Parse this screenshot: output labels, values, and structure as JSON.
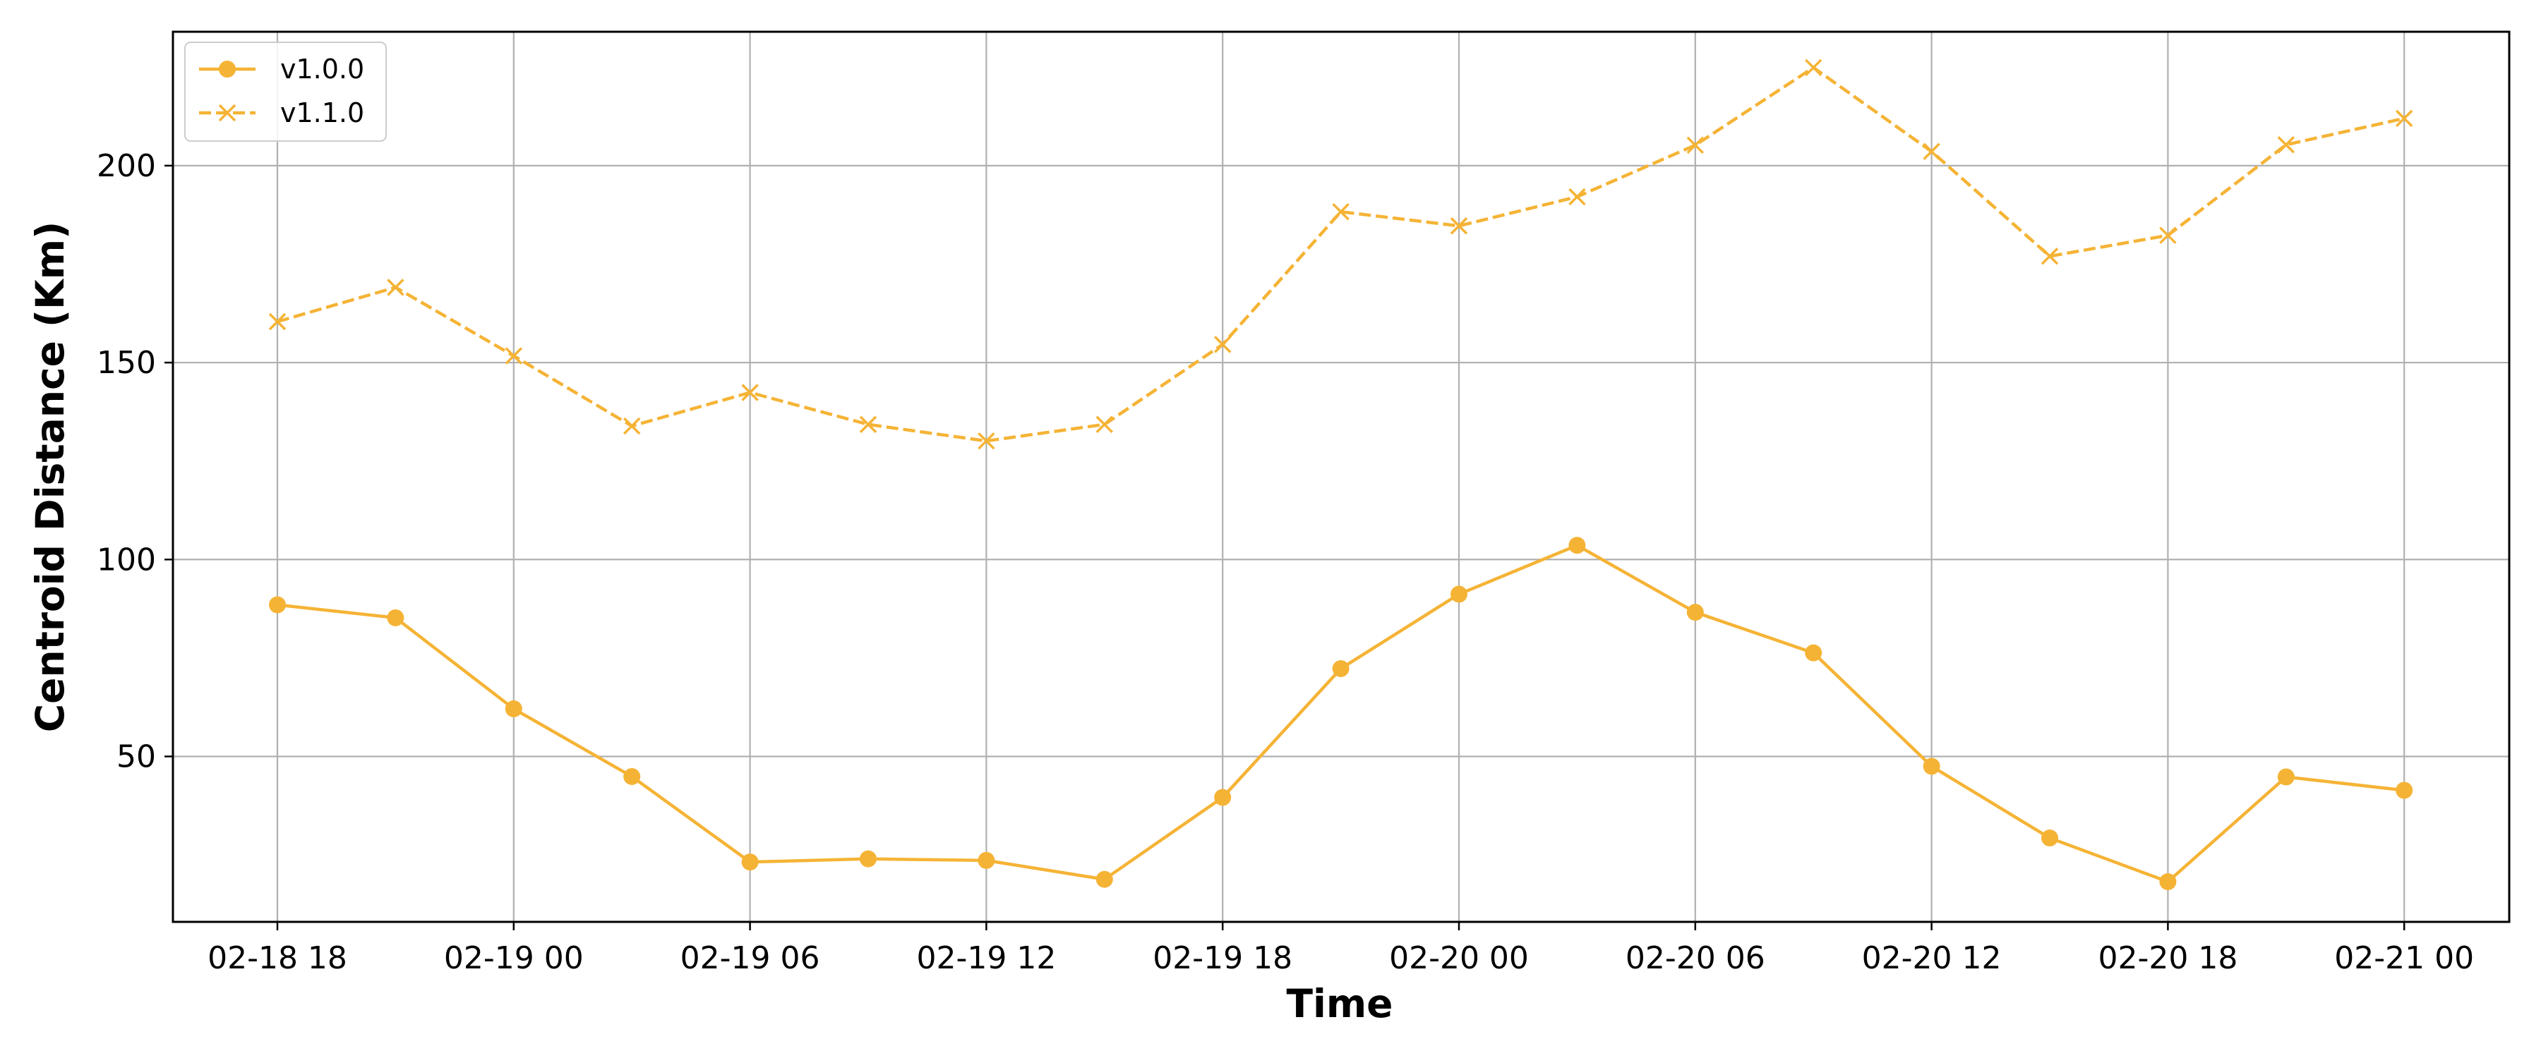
{
  "chart_data": {
    "type": "line",
    "title": "",
    "xlabel": "Time",
    "ylabel": "Centroid Distance (Km)",
    "x": [
      "02-18 18",
      "02-18 21",
      "02-19 00",
      "02-19 03",
      "02-19 06",
      "02-19 09",
      "02-19 12",
      "02-19 15",
      "02-19 18",
      "02-19 21",
      "02-20 00",
      "02-20 03",
      "02-20 06",
      "02-20 09",
      "02-20 12",
      "02-20 15",
      "02-20 18",
      "02-20 21",
      "02-21 00"
    ],
    "x_ticks": [
      "02-18 18",
      "02-19 00",
      "02-19 06",
      "02-19 12",
      "02-19 18",
      "02-20 00",
      "02-20 06",
      "02-20 12",
      "02-20 18",
      "02-21 00"
    ],
    "y_ticks": [
      50,
      100,
      150,
      200
    ],
    "ylim": [
      8,
      234
    ],
    "grid": true,
    "legend_position": "top-left",
    "series": [
      {
        "name": "v1.0.0",
        "color": "#F5B335",
        "line_style": "solid",
        "marker": "circle",
        "values": [
          88.5,
          85.2,
          62.1,
          44.9,
          23.2,
          24.0,
          23.6,
          18.8,
          39.6,
          72.3,
          91.2,
          103.6,
          86.6,
          76.3,
          47.5,
          29.3,
          18.2,
          44.8,
          41.4
        ]
      },
      {
        "name": "v1.1.0",
        "color": "#F5B335",
        "line_style": "dashed",
        "marker": "x",
        "values": [
          160.4,
          169.1,
          151.7,
          133.9,
          142.4,
          134.3,
          130.1,
          134.3,
          154.6,
          188.3,
          184.7,
          192.1,
          205.2,
          224.9,
          203.6,
          177.0,
          182.3,
          205.3,
          212.0
        ]
      }
    ]
  }
}
